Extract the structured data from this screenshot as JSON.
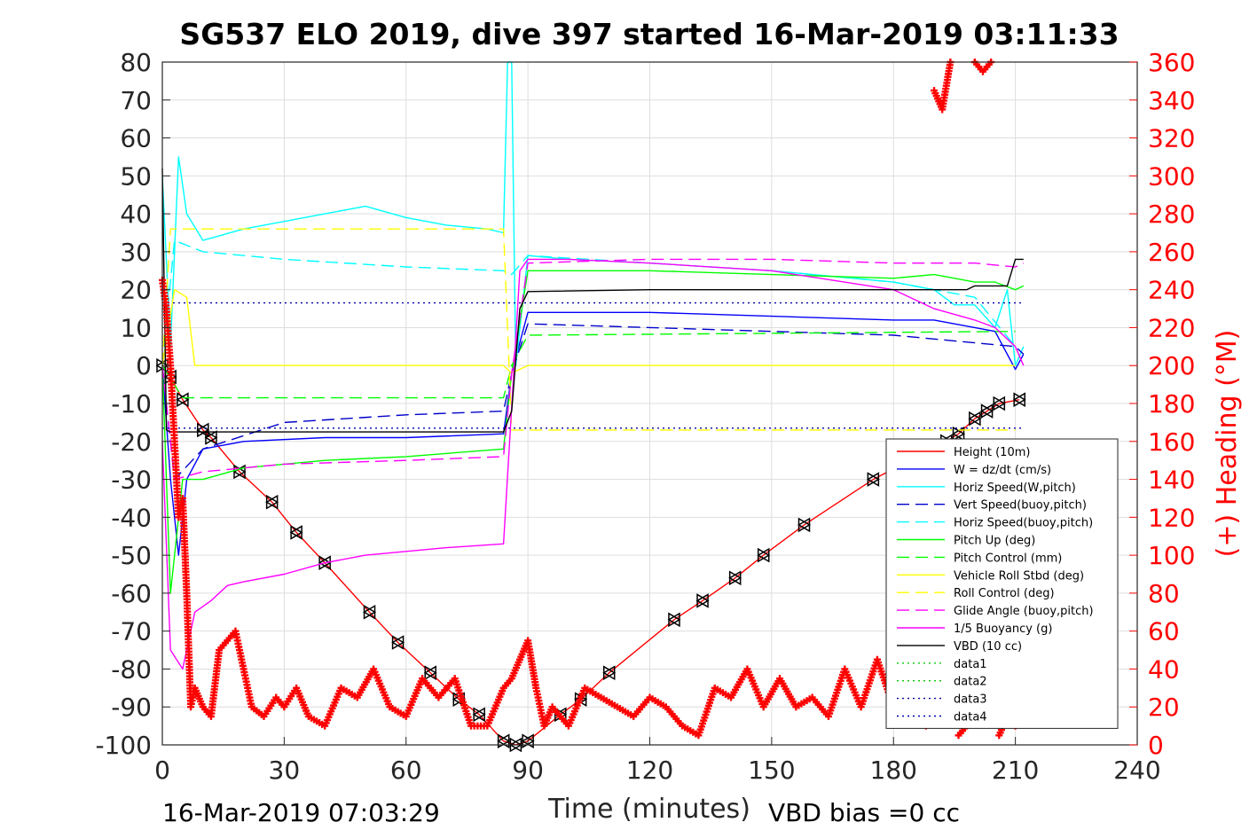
{
  "chart_data": {
    "type": "line",
    "title": "SG537 ELO 2019, dive 397 started 16-Mar-2019 03:11:33",
    "xlabel": "Time (minutes)",
    "ylabel": "",
    "ylabel_right": "(+) Heading (°M)",
    "xlim": [
      0,
      240
    ],
    "ylim": [
      -100,
      80
    ],
    "ylim_right": [
      0,
      360
    ],
    "x_ticks": [
      "0",
      "30",
      "60",
      "90",
      "120",
      "150",
      "180",
      "210",
      "240"
    ],
    "y_ticks": [
      "80",
      "70",
      "60",
      "50",
      "40",
      "30",
      "20",
      "10",
      "0",
      "-10",
      "-20",
      "-30",
      "-40",
      "-50",
      "-60",
      "-70",
      "-80",
      "-90",
      "-100"
    ],
    "y_ticks_right": [
      "360",
      "340",
      "320",
      "300",
      "280",
      "260",
      "240",
      "220",
      "200",
      "180",
      "160",
      "140",
      "120",
      "100",
      "80",
      "60",
      "40",
      "20",
      "0"
    ],
    "grid": true,
    "legend_position": "lower-right",
    "footer_left": "16-Mar-2019 07:03:29",
    "footer_right": "VBD bias =0 cc",
    "series": [
      {
        "name": "Height (10m)",
        "color": "#ff0000",
        "dash": "solid",
        "markers": "triangle",
        "x": [
          0,
          2,
          5,
          10,
          12,
          19,
          27,
          33,
          40,
          51,
          58,
          66,
          73,
          78,
          84,
          87,
          90,
          98,
          103,
          110,
          126,
          133,
          141,
          148,
          158,
          175,
          193,
          196,
          200,
          203,
          206,
          211
        ],
        "y": [
          0,
          -3,
          -9,
          -17,
          -19,
          -28,
          -36,
          -44,
          -52,
          -65,
          -73,
          -81,
          -88,
          -92,
          -99,
          -100,
          -99,
          -92,
          -88,
          -81,
          -67,
          -62,
          -56,
          -50,
          -42,
          -30,
          -20,
          -18,
          -14,
          -12,
          -10,
          -9
        ]
      },
      {
        "name": "W = dz/dt (cm/s)",
        "color": "#0000ff",
        "dash": "solid",
        "x": [
          0,
          2,
          4,
          6,
          10,
          20,
          40,
          60,
          84,
          86,
          90,
          100,
          120,
          150,
          180,
          190,
          200,
          205,
          210,
          212
        ],
        "y": [
          0,
          -30,
          -50,
          -30,
          -22,
          -20,
          -19,
          -19,
          -18,
          -2,
          14,
          14,
          14,
          13,
          12,
          12,
          10,
          9,
          -1,
          3
        ]
      },
      {
        "name": "Horiz Speed(W,pitch)",
        "color": "#00ffff",
        "dash": "solid",
        "x": [
          0,
          2,
          4,
          6,
          10,
          20,
          30,
          40,
          50,
          60,
          70,
          80,
          84,
          85,
          86,
          87,
          90,
          100,
          120,
          150,
          180,
          190,
          195,
          200,
          205,
          208,
          210,
          212
        ],
        "y": [
          50,
          5,
          55,
          40,
          33,
          36,
          38,
          40,
          42,
          39,
          37,
          36,
          35,
          80,
          80,
          0,
          29,
          28,
          27,
          25,
          22,
          20,
          16,
          16,
          10,
          20,
          0,
          5
        ]
      },
      {
        "name": "Vert Speed(buoy,pitch)",
        "color": "#0000cc",
        "dash": "dashed",
        "x": [
          0,
          3,
          10,
          30,
          60,
          84,
          86,
          90,
          120,
          150,
          180,
          200,
          210,
          212
        ],
        "y": [
          0,
          -30,
          -22,
          -15,
          -13,
          -12,
          -2,
          11,
          10,
          9,
          8,
          6,
          5,
          3
        ]
      },
      {
        "name": "Horiz Speed(buoy,pitch)",
        "color": "#00ffff",
        "dash": "dashed",
        "x": [
          0,
          3,
          10,
          30,
          60,
          84,
          86,
          90,
          120,
          150,
          180,
          200,
          210
        ],
        "y": [
          0,
          33,
          30,
          28,
          26,
          25,
          24,
          29,
          27,
          25,
          22,
          18,
          5
        ]
      },
      {
        "name": "Pitch Up (deg)",
        "color": "#00ff00",
        "dash": "solid",
        "x": [
          0,
          2,
          5,
          10,
          20,
          40,
          60,
          84,
          86,
          90,
          120,
          150,
          180,
          190,
          200,
          205,
          210,
          212
        ],
        "y": [
          0,
          -60,
          -30,
          -30,
          -27,
          -25,
          -24,
          -22,
          -2,
          25,
          25,
          24,
          23,
          24,
          22,
          22,
          20,
          21
        ]
      },
      {
        "name": "Pitch Control (mm)",
        "color": "#00ff00",
        "dash": "dashed",
        "x": [
          0,
          5,
          84,
          86,
          90,
          210
        ],
        "y": [
          0,
          -8.5,
          -8.5,
          0,
          8,
          9
        ]
      },
      {
        "name": "Vehicle Roll Stbd (deg)",
        "color": "#ffff00",
        "dash": "solid",
        "x": [
          0,
          3,
          6,
          8,
          20,
          40,
          60,
          84,
          86,
          90,
          120,
          150,
          180,
          210
        ],
        "y": [
          0,
          20,
          18,
          0,
          0,
          0,
          0,
          0,
          -2,
          0,
          0,
          0,
          0,
          0
        ]
      },
      {
        "name": "Roll Control (deg)",
        "color": "#ffff00",
        "dash": "dashed",
        "x": [
          0,
          2,
          84,
          86,
          210
        ],
        "y": [
          0,
          36,
          36,
          -17,
          -17
        ]
      },
      {
        "name": "Glide Angle (buoy,pitch)",
        "color": "#ff00ff",
        "dash": "dashed",
        "x": [
          0,
          3,
          10,
          30,
          60,
          84,
          86,
          90,
          120,
          150,
          180,
          200,
          210,
          212
        ],
        "y": [
          0,
          -30,
          -28,
          -26,
          -25,
          -24,
          -2,
          27,
          28,
          28,
          27,
          27,
          26,
          27
        ]
      },
      {
        "name": "1/5 Buoyancy (g)",
        "color": "#ff00ff",
        "dash": "solid",
        "x": [
          0,
          2,
          5,
          8,
          12,
          16,
          20,
          30,
          40,
          50,
          60,
          70,
          84,
          88,
          90,
          100,
          120,
          150,
          180,
          190,
          200,
          205,
          210,
          212
        ],
        "y": [
          -20,
          -75,
          -80,
          -65,
          -62,
          -58,
          -57,
          -55,
          -52,
          -50,
          -49,
          -48,
          -47,
          25,
          28,
          28,
          27,
          25,
          20,
          15,
          12,
          10,
          5,
          0
        ]
      },
      {
        "name": "VBD (10 cc)",
        "color": "#000000",
        "dash": "solid",
        "x": [
          0,
          1,
          2,
          84,
          86,
          88,
          90,
          120,
          190,
          198,
          200,
          208,
          210,
          212
        ],
        "y": [
          52,
          -17,
          -17.5,
          -17.5,
          -12,
          15,
          19.5,
          20,
          20,
          20,
          21,
          21,
          28,
          28
        ]
      },
      {
        "name": "data1",
        "color": "#00cc00",
        "dash": "dotted",
        "x": [],
        "y": []
      },
      {
        "name": "data2",
        "color": "#00cc00",
        "dash": "dotted",
        "x": [],
        "y": []
      },
      {
        "name": "data3",
        "color": "#0000aa",
        "dash": "dotted",
        "x": [
          0,
          212
        ],
        "y": [
          16.5,
          16.5
        ]
      },
      {
        "name": "data4",
        "color": "#0000aa",
        "dash": "dotted",
        "x": [
          0,
          212
        ],
        "y": [
          -16.5,
          -16.5
        ]
      }
    ],
    "heading": {
      "axis": "right",
      "color": "#ff0000",
      "marker": "plus",
      "x": [
        0,
        1,
        2,
        3,
        4,
        5,
        6,
        7,
        8,
        10,
        12,
        14,
        16,
        18,
        20,
        22,
        25,
        28,
        30,
        33,
        36,
        40,
        44,
        48,
        52,
        56,
        60,
        64,
        68,
        72,
        76,
        80,
        84,
        86,
        88,
        90,
        92,
        94,
        96,
        98,
        100,
        104,
        108,
        112,
        116,
        120,
        124,
        128,
        132,
        136,
        140,
        144,
        148,
        152,
        156,
        160,
        164,
        168,
        172,
        176,
        180,
        184,
        188,
        190,
        192,
        194,
        196,
        198,
        200,
        202,
        204,
        206,
        208,
        210
      ],
      "y": [
        245,
        230,
        200,
        160,
        120,
        130,
        80,
        20,
        30,
        20,
        15,
        50,
        55,
        60,
        40,
        20,
        15,
        25,
        20,
        30,
        15,
        10,
        30,
        25,
        40,
        20,
        15,
        35,
        25,
        35,
        10,
        10,
        30,
        35,
        45,
        55,
        30,
        10,
        20,
        15,
        10,
        30,
        25,
        20,
        15,
        25,
        20,
        10,
        5,
        30,
        25,
        40,
        20,
        35,
        20,
        25,
        15,
        40,
        20,
        45,
        20,
        15,
        10,
        345,
        335,
        360,
        5,
        10,
        360,
        355,
        360,
        5,
        15,
        10
      ]
    }
  }
}
